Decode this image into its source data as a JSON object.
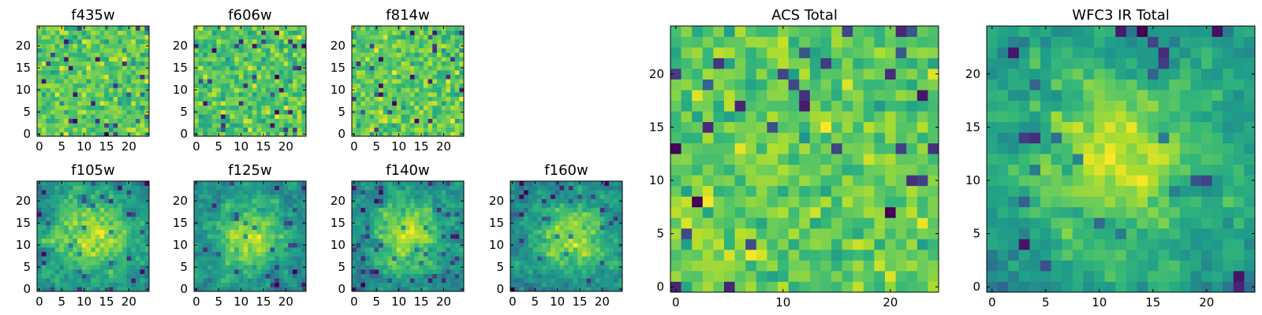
{
  "chart_data": [
    {
      "id": "f435w",
      "type": "heatmap",
      "title": "f435w",
      "grid_size": [
        25,
        25
      ],
      "seed": 11,
      "smooth": 0,
      "xticks": [
        0,
        5,
        10,
        15,
        20
      ],
      "yticks": [
        0,
        5,
        10,
        15,
        20
      ],
      "xlim": [
        -0.5,
        24.5
      ],
      "ylim": [
        -0.5,
        24.5
      ],
      "colormap": "viridis",
      "values_note": "random noise field (individual pixel values not labeled)"
    },
    {
      "id": "f606w",
      "type": "heatmap",
      "title": "f606w",
      "grid_size": [
        25,
        25
      ],
      "seed": 23,
      "smooth": 0,
      "xticks": [
        0,
        5,
        10,
        15,
        20
      ],
      "yticks": [
        0,
        5,
        10,
        15,
        20
      ],
      "xlim": [
        -0.5,
        24.5
      ],
      "ylim": [
        -0.5,
        24.5
      ],
      "colormap": "viridis",
      "values_note": "random noise field (individual pixel values not labeled)"
    },
    {
      "id": "f814w",
      "type": "heatmap",
      "title": "f814w",
      "grid_size": [
        25,
        25
      ],
      "seed": 37,
      "smooth": 0,
      "xticks": [
        0,
        5,
        10,
        15,
        20
      ],
      "yticks": [
        0,
        5,
        10,
        15,
        20
      ],
      "xlim": [
        -0.5,
        24.5
      ],
      "ylim": [
        -0.5,
        24.5
      ],
      "colormap": "viridis",
      "values_note": "random noise field (individual pixel values not labeled)"
    },
    {
      "id": "f105w",
      "type": "heatmap",
      "title": "f105w",
      "grid_size": [
        25,
        25
      ],
      "seed": 41,
      "smooth": 1,
      "blob": [
        12,
        12,
        7
      ],
      "xticks": [
        0,
        5,
        10,
        15,
        20
      ],
      "yticks": [
        0,
        5,
        10,
        15,
        20
      ],
      "xlim": [
        -0.5,
        24.5
      ],
      "ylim": [
        -0.5,
        24.5
      ],
      "colormap": "viridis",
      "values_note": "smoothed noise with central bright source"
    },
    {
      "id": "f125w",
      "type": "heatmap",
      "title": "f125w",
      "grid_size": [
        25,
        25
      ],
      "seed": 53,
      "smooth": 1,
      "blob": [
        12,
        12,
        6
      ],
      "xticks": [
        0,
        5,
        10,
        15,
        20
      ],
      "yticks": [
        0,
        5,
        10,
        15,
        20
      ],
      "xlim": [
        -0.5,
        24.5
      ],
      "ylim": [
        -0.5,
        24.5
      ],
      "colormap": "viridis",
      "values_note": "smoothed noise with central bright source"
    },
    {
      "id": "f140w",
      "type": "heatmap",
      "title": "f140w",
      "grid_size": [
        25,
        25
      ],
      "seed": 67,
      "smooth": 1,
      "blob": [
        12,
        12,
        6
      ],
      "xticks": [
        0,
        5,
        10,
        15,
        20
      ],
      "yticks": [
        0,
        5,
        10,
        15,
        20
      ],
      "xlim": [
        -0.5,
        24.5
      ],
      "ylim": [
        -0.5,
        24.5
      ],
      "colormap": "viridis",
      "values_note": "smoothed noise with central bright source"
    },
    {
      "id": "f160w",
      "type": "heatmap",
      "title": "f160w",
      "grid_size": [
        25,
        25
      ],
      "seed": 79,
      "smooth": 1,
      "blob": [
        13,
        12,
        6
      ],
      "xticks": [
        0,
        5,
        10,
        15,
        20
      ],
      "yticks": [
        0,
        5,
        10,
        15,
        20
      ],
      "xlim": [
        -0.5,
        24.5
      ],
      "ylim": [
        -0.5,
        24.5
      ],
      "colormap": "viridis",
      "values_note": "smoothed noise with central bright source"
    },
    {
      "id": "acs_total",
      "type": "heatmap",
      "title": "ACS Total",
      "grid_size": [
        25,
        25
      ],
      "seed": 97,
      "smooth": 0,
      "xticks": [
        0,
        10,
        20
      ],
      "yticks": [
        0,
        5,
        10,
        15,
        20
      ],
      "xlim": [
        -0.5,
        24.5
      ],
      "ylim": [
        -0.5,
        24.5
      ],
      "colormap": "viridis",
      "values_note": "random noise field (individual pixel values not labeled)"
    },
    {
      "id": "wfc3_ir_total",
      "type": "heatmap",
      "title": "WFC3 IR Total",
      "grid_size": [
        25,
        25
      ],
      "seed": 113,
      "smooth": 1,
      "blob": [
        12,
        12,
        6
      ],
      "xticks": [
        0,
        5,
        10,
        15,
        20
      ],
      "yticks": [
        0,
        5,
        10,
        15,
        20
      ],
      "xlim": [
        -0.5,
        24.5
      ],
      "ylim": [
        -0.5,
        24.5
      ],
      "colormap": "viridis",
      "values_note": "smoothed noise with central bright source"
    }
  ]
}
